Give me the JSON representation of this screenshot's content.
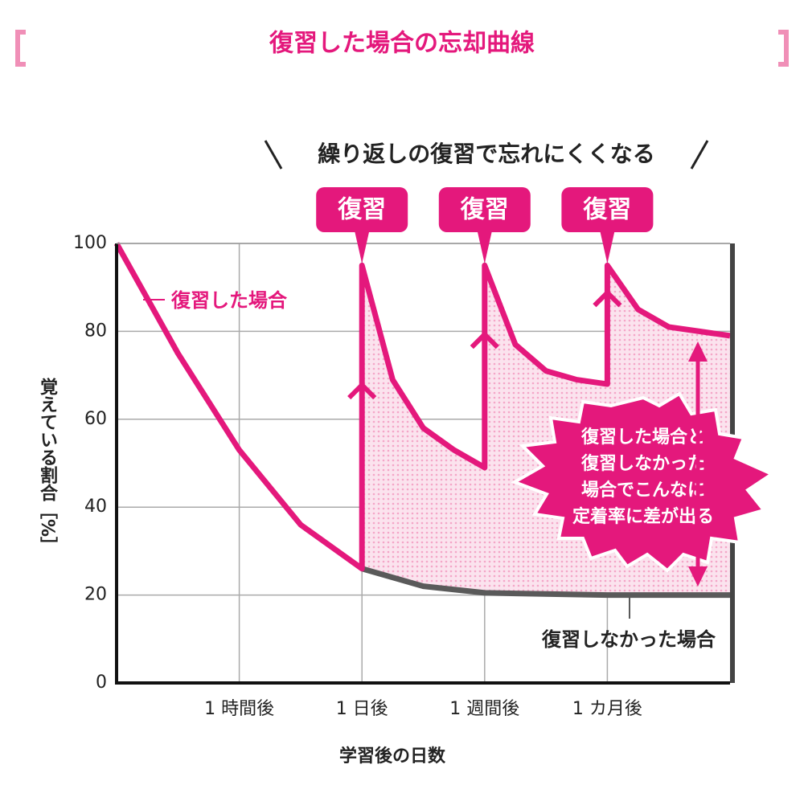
{
  "chart_data": {
    "type": "line",
    "title": "復習した場合の忘却曲線",
    "subtitle": "繰り返しの復習で忘れにくくなる",
    "annotations": [
      "復習",
      "復習",
      "復習"
    ],
    "burst_text": [
      "復習した場合と",
      "復習しなかった",
      "場合でこんなに",
      "定着率に差が出る"
    ],
    "y_label": "覚えている割合［%］",
    "x_label": "学習後の日数",
    "xlim": [
      0,
      5
    ],
    "xticks": [
      {
        "value": 1,
        "label": "1 時間後"
      },
      {
        "value": 2,
        "label": "1 日後"
      },
      {
        "value": 3,
        "label": "1 週間後"
      },
      {
        "value": 4,
        "label": "1 カ月後"
      }
    ],
    "ylim": [
      0,
      100
    ],
    "yticks": [
      0,
      20,
      40,
      60,
      80,
      100
    ],
    "grid": true,
    "series": [
      {
        "name": "復習した場合",
        "color": "#e4187c",
        "x": [
          0,
          0.5,
          1,
          1.5,
          2,
          2,
          2.25,
          2.5,
          2.75,
          3,
          3,
          3.25,
          3.5,
          3.75,
          4,
          4,
          4.25,
          4.5,
          4.75,
          5
        ],
        "values": [
          100,
          75,
          53,
          36,
          26,
          95,
          69,
          58,
          53,
          49,
          95,
          77,
          71,
          69,
          68,
          95,
          85,
          81,
          80,
          79
        ]
      },
      {
        "name": "復習しなかった場合",
        "color": "#5a5a5a",
        "x": [
          2,
          2.5,
          3,
          4,
          5
        ],
        "values": [
          26,
          22,
          20.5,
          20,
          20
        ]
      }
    ]
  }
}
